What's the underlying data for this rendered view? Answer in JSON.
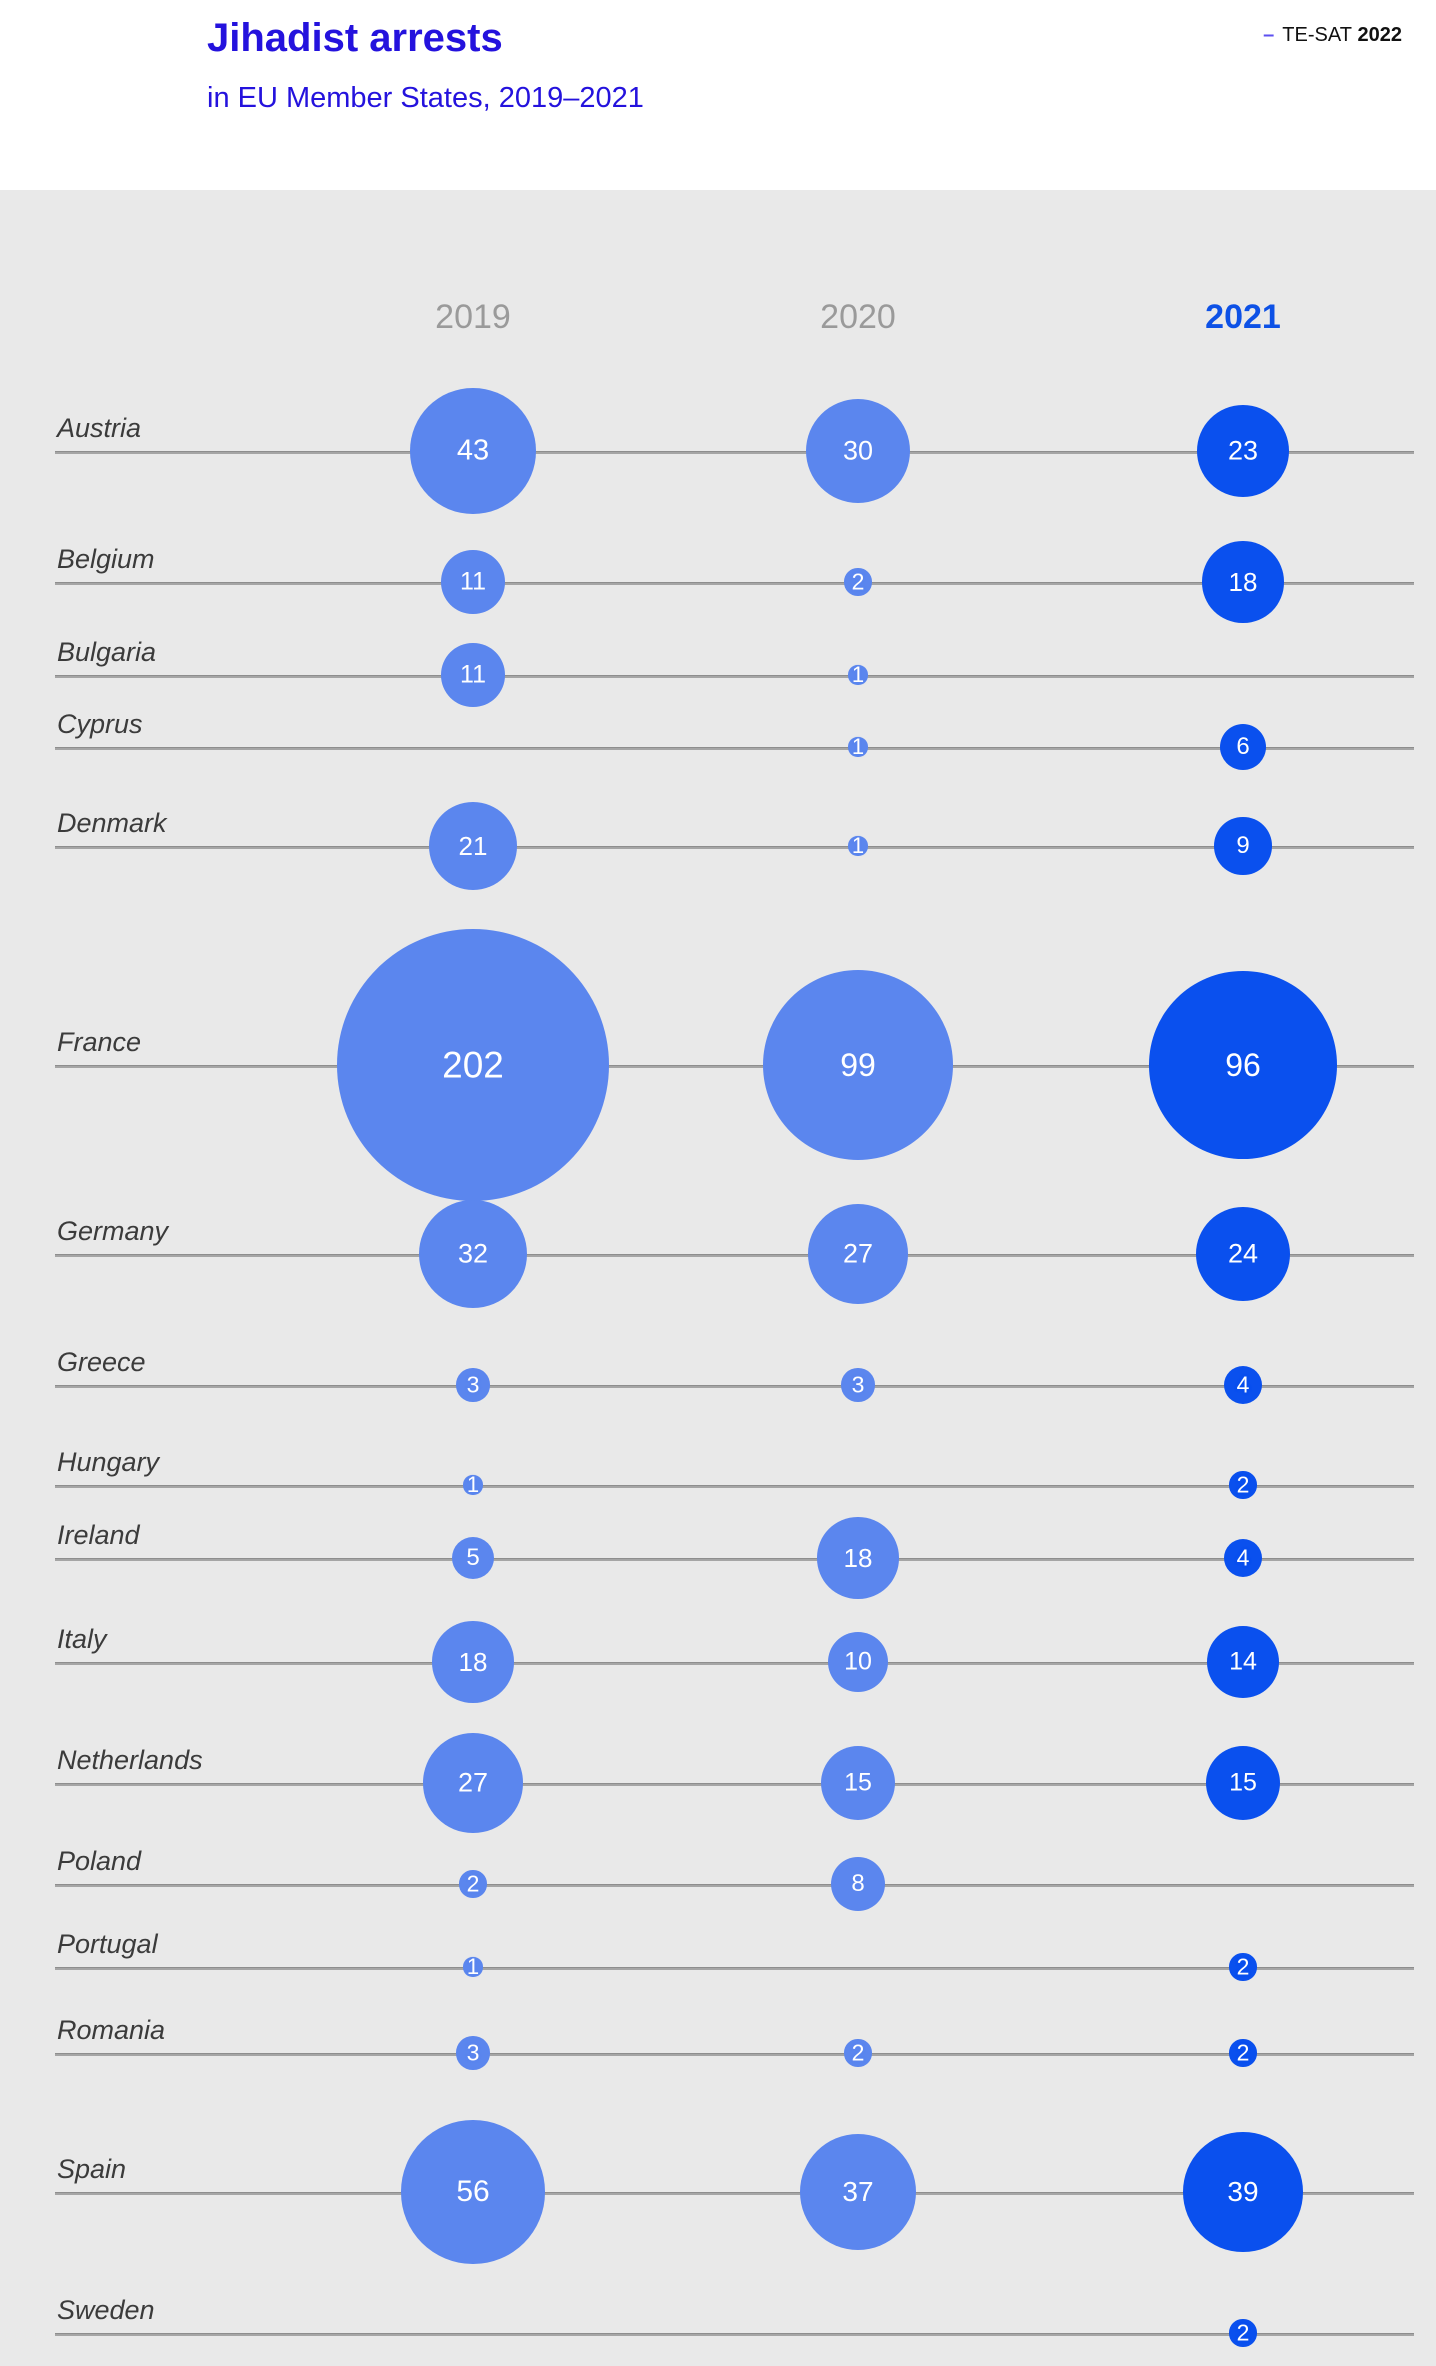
{
  "header": {
    "title": "Jihadist arrests",
    "subtitle": "in EU Member States, 2019–2021",
    "source_dash": "–",
    "source_name": "TE-SAT",
    "source_year": "2022"
  },
  "chart_data": {
    "type": "bubble",
    "title": "Jihadist arrests in EU Member States, 2019–2021",
    "columns": [
      "2019",
      "2020",
      "2021"
    ],
    "highlight_column": "2021",
    "legend_position": "none",
    "grid": "horizontal-baselines",
    "sizing": "area-proportional",
    "rows": [
      {
        "country": "Austria",
        "values": [
          43,
          30,
          23
        ]
      },
      {
        "country": "Belgium",
        "values": [
          11,
          2,
          18
        ]
      },
      {
        "country": "Bulgaria",
        "values": [
          11,
          1,
          null
        ]
      },
      {
        "country": "Cyprus",
        "values": [
          null,
          1,
          6
        ]
      },
      {
        "country": "Denmark",
        "values": [
          21,
          1,
          9
        ]
      },
      {
        "country": "France",
        "values": [
          202,
          99,
          96
        ]
      },
      {
        "country": "Germany",
        "values": [
          32,
          27,
          24
        ]
      },
      {
        "country": "Greece",
        "values": [
          3,
          3,
          4
        ]
      },
      {
        "country": "Hungary",
        "values": [
          1,
          null,
          2
        ]
      },
      {
        "country": "Ireland",
        "values": [
          5,
          18,
          4
        ]
      },
      {
        "country": "Italy",
        "values": [
          18,
          10,
          14
        ]
      },
      {
        "country": "Netherlands",
        "values": [
          27,
          15,
          15
        ]
      },
      {
        "country": "Poland",
        "values": [
          2,
          8,
          null
        ]
      },
      {
        "country": "Portugal",
        "values": [
          1,
          null,
          2
        ]
      },
      {
        "country": "Romania",
        "values": [
          3,
          2,
          2
        ]
      },
      {
        "country": "Spain",
        "values": [
          56,
          37,
          39
        ]
      },
      {
        "country": "Sweden",
        "values": [
          null,
          null,
          2
        ]
      }
    ],
    "colors": {
      "bubble_2019": "#5b86ee",
      "bubble_2020": "#5b86ee",
      "bubble_2021": "#0a50ee",
      "title_accent": "#2412dd",
      "year_label_gray": "#9a9a9a",
      "year_label_highlight": "#0d51e6",
      "background": "#e9e9e9",
      "baseline": "#a5a5a5",
      "bubble_value_text": "#ffffff"
    }
  }
}
